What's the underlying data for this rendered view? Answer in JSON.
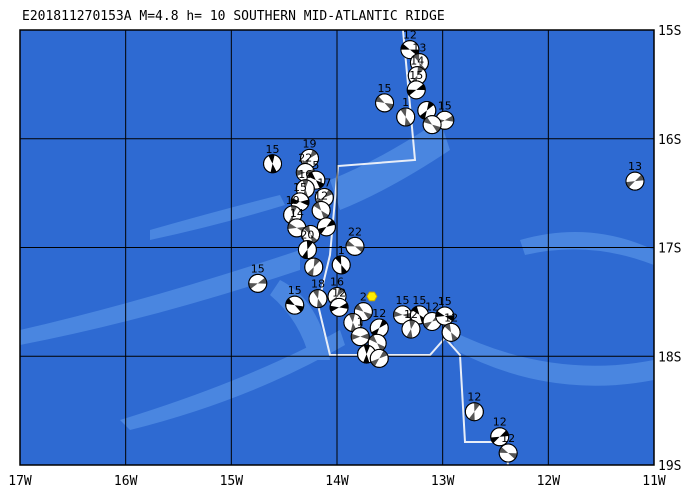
{
  "chart_data": {
    "type": "focal-map",
    "title": "E201811270153A M=4.8 h= 10 SOUTHERN MID-ATLANTIC RIDGE",
    "xlim": [
      -17,
      -11
    ],
    "ylim": [
      -19,
      -15
    ],
    "xticks": [
      {
        "value": -17,
        "label": "17W"
      },
      {
        "value": -16,
        "label": "16W"
      },
      {
        "value": -15,
        "label": "15W"
      },
      {
        "value": -14,
        "label": "14W"
      },
      {
        "value": -13,
        "label": "13W"
      },
      {
        "value": -12,
        "label": "12W"
      },
      {
        "value": -11,
        "label": "11W"
      }
    ],
    "yticks": [
      {
        "value": -15,
        "label": "15S"
      },
      {
        "value": -16,
        "label": "16S"
      },
      {
        "value": -17,
        "label": "17S"
      },
      {
        "value": -18,
        "label": "18S"
      },
      {
        "value": -19,
        "label": "19S"
      }
    ],
    "grid": true,
    "epicenter": {
      "lon": -13.67,
      "lat": -17.45,
      "color": "#ffee00"
    },
    "events": [
      {
        "lon": -13.31,
        "lat": -15.18,
        "depth": 12
      },
      {
        "lon": -13.22,
        "lat": -15.3,
        "depth": 13
      },
      {
        "lon": -13.24,
        "lat": -15.42,
        "depth": 14
      },
      {
        "lon": -13.25,
        "lat": -15.55,
        "depth": 15
      },
      {
        "lon": -13.55,
        "lat": -15.67,
        "depth": 15
      },
      {
        "lon": -13.35,
        "lat": -15.8,
        "depth": 1
      },
      {
        "lon": -13.15,
        "lat": -15.74,
        "depth": null
      },
      {
        "lon": -12.98,
        "lat": -15.83,
        "depth": 15
      },
      {
        "lon": -13.1,
        "lat": -15.87,
        "depth": null
      },
      {
        "lon": -14.61,
        "lat": -16.23,
        "depth": 15
      },
      {
        "lon": -14.26,
        "lat": -16.18,
        "depth": 19
      },
      {
        "lon": -14.3,
        "lat": -16.31,
        "depth": 22
      },
      {
        "lon": -14.2,
        "lat": -16.38,
        "depth": 5
      },
      {
        "lon": -14.3,
        "lat": -16.46,
        "depth": 16
      },
      {
        "lon": -14.12,
        "lat": -16.54,
        "depth": 17
      },
      {
        "lon": -14.35,
        "lat": -16.58,
        "depth": 15
      },
      {
        "lon": -14.15,
        "lat": -16.66,
        "depth": 12
      },
      {
        "lon": -14.42,
        "lat": -16.7,
        "depth": 19
      },
      {
        "lon": -14.1,
        "lat": -16.81,
        "depth": null
      },
      {
        "lon": -14.38,
        "lat": -16.82,
        "depth": 14
      },
      {
        "lon": -14.25,
        "lat": -16.88,
        "depth": null
      },
      {
        "lon": -14.28,
        "lat": -17.02,
        "depth": 20
      },
      {
        "lon": -11.18,
        "lat": -16.39,
        "depth": 13
      },
      {
        "lon": -13.83,
        "lat": -16.99,
        "depth": 22
      },
      {
        "lon": -13.96,
        "lat": -17.16,
        "depth": 1
      },
      {
        "lon": -14.22,
        "lat": -17.18,
        "depth": null
      },
      {
        "lon": -14.75,
        "lat": -17.33,
        "depth": 15
      },
      {
        "lon": -14.4,
        "lat": -17.53,
        "depth": 15
      },
      {
        "lon": -14.18,
        "lat": -17.47,
        "depth": 18
      },
      {
        "lon": -14.0,
        "lat": -17.45,
        "depth": 16
      },
      {
        "lon": -13.98,
        "lat": -17.55,
        "depth": 12
      },
      {
        "lon": -13.75,
        "lat": -17.59,
        "depth": 2
      },
      {
        "lon": -13.85,
        "lat": -17.69,
        "depth": null
      },
      {
        "lon": -13.6,
        "lat": -17.74,
        "depth": 12
      },
      {
        "lon": -13.78,
        "lat": -17.82,
        "depth": 1
      },
      {
        "lon": -13.62,
        "lat": -17.88,
        "depth": null
      },
      {
        "lon": -13.72,
        "lat": -17.98,
        "depth": null
      },
      {
        "lon": -13.6,
        "lat": -18.02,
        "depth": null
      },
      {
        "lon": -13.38,
        "lat": -17.62,
        "depth": 15
      },
      {
        "lon": -13.22,
        "lat": -17.62,
        "depth": 15
      },
      {
        "lon": -13.3,
        "lat": -17.75,
        "depth": 12
      },
      {
        "lon": -13.1,
        "lat": -17.68,
        "depth": 12
      },
      {
        "lon": -12.98,
        "lat": -17.63,
        "depth": 15
      },
      {
        "lon": -12.92,
        "lat": -17.78,
        "depth": 12
      },
      {
        "lon": -12.7,
        "lat": -18.51,
        "depth": 12
      },
      {
        "lon": -12.46,
        "lat": -18.74,
        "depth": 12
      },
      {
        "lon": -12.38,
        "lat": -18.89,
        "depth": 12
      }
    ]
  }
}
